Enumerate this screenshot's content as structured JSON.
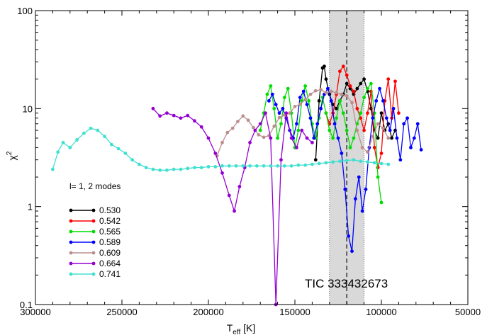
{
  "chart_data": {
    "type": "line",
    "title": "",
    "xlabel": "T",
    "xlabel_sub": "eff",
    "xlabel_unit": " [K]",
    "ylabel": "χ",
    "ylabel_sup": "2",
    "x_reversed": true,
    "xlim": [
      300000,
      50000
    ],
    "ylim": [
      0.1,
      100
    ],
    "yscale": "log",
    "x_ticks": [
      300000,
      250000,
      200000,
      150000,
      100000,
      50000
    ],
    "x_tick_labels": [
      "300000",
      "250000",
      "200000",
      "150000",
      "100000",
      "50000"
    ],
    "y_ticks": [
      0.1,
      1,
      10,
      100
    ],
    "y_tick_labels": [
      "0.1",
      "1",
      "10",
      "100"
    ],
    "legend_title": "l= 1, 2 modes",
    "legend_position": "left",
    "annotation": "TIC 333432673",
    "teff_band": [
      130000,
      110000
    ],
    "teff_value": 120000,
    "series": [
      {
        "name": "0.530",
        "color": "#000000",
        "x": [
          138000,
          136000,
          134000,
          133000,
          132000,
          130000,
          128000,
          126000,
          124000,
          122000,
          120000,
          118000,
          116000,
          114000,
          112000,
          110000,
          108000,
          106000,
          104000,
          102000,
          100000,
          98000,
          96000,
          94000,
          92000
        ],
        "y": [
          3.0,
          12,
          26,
          27,
          20,
          14,
          11,
          10,
          12,
          14,
          18,
          16,
          14,
          16,
          18,
          20,
          15,
          10,
          6,
          5,
          9,
          6,
          7,
          5,
          6
        ]
      },
      {
        "name": "0.542",
        "color": "#ff0000",
        "x": [
          132000,
          130000,
          128000,
          126000,
          124000,
          122000,
          120000,
          118000,
          116000,
          114000,
          112000,
          110000,
          108000,
          106000,
          104000,
          102000,
          100000,
          98000,
          96000,
          94000,
          92000,
          90000
        ],
        "y": [
          9,
          7,
          9,
          14,
          24,
          27,
          22,
          17,
          15,
          10,
          8,
          6,
          9,
          15,
          4,
          2.5,
          3.5,
          12,
          20,
          8,
          19,
          9
        ]
      },
      {
        "name": "0.565",
        "color": "#00dd00",
        "x": [
          170000,
          168000,
          166000,
          164000,
          162000,
          160000,
          158000,
          156000,
          154000,
          152000,
          150000,
          148000,
          146000,
          144000,
          142000,
          140000,
          138000,
          136000,
          134000,
          132000,
          130000,
          128000,
          126000,
          124000,
          122000,
          120000,
          118000,
          116000,
          114000,
          112000,
          110000,
          108000,
          106000,
          104000,
          102000,
          100000
        ],
        "y": [
          6,
          9,
          14,
          17,
          10,
          5,
          7,
          13,
          16,
          9,
          4,
          6,
          12,
          17,
          12,
          7,
          5,
          8,
          13,
          9,
          6,
          5,
          8,
          12,
          9,
          6,
          4,
          5,
          7,
          9,
          13,
          16,
          18,
          9,
          2,
          1.1
        ]
      },
      {
        "name": "0.589",
        "color": "#0000ff",
        "x": [
          165000,
          163000,
          161000,
          159000,
          157000,
          155000,
          153000,
          151000,
          149000,
          147000,
          145000,
          143000,
          141000,
          139000,
          137000,
          135000,
          133000,
          131000,
          129000,
          127000,
          125000,
          123000,
          121000,
          119000,
          117000,
          115000,
          113000,
          111000,
          109000,
          107000,
          105000,
          103000,
          101000,
          99000,
          97000,
          95000,
          93000,
          91000,
          89000,
          87000,
          85000,
          83000,
          81000,
          79000,
          77000
        ],
        "y": [
          12,
          14,
          11,
          9,
          10,
          8,
          6,
          5,
          7,
          13,
          15,
          11,
          8,
          5,
          7,
          10,
          14,
          16,
          12,
          7,
          5,
          3.5,
          1.5,
          0.5,
          0.35,
          1.2,
          2,
          0.9,
          1.5,
          4,
          8,
          12,
          16,
          12,
          8,
          6,
          10,
          5,
          3,
          7,
          8,
          4,
          5,
          7,
          3.8
        ]
      },
      {
        "name": "0.609",
        "color": "#bc8f8f",
        "x": [
          195000,
          192000,
          189000,
          186000,
          183000,
          180000,
          177000,
          174000,
          171000,
          168000,
          165000,
          162000,
          159000,
          156000,
          153000,
          150000,
          147000,
          144000,
          141000,
          138000,
          135000,
          132000,
          129000,
          126000,
          123000,
          120000,
          117000,
          114000,
          111000,
          108000,
          105000,
          102000,
          99000,
          96000
        ],
        "y": [
          3.3,
          4.5,
          5.7,
          6.3,
          7.4,
          8.4,
          7.6,
          6.4,
          5.4,
          5.1,
          5.3,
          6.6,
          8.1,
          8.6,
          9.0,
          10.5,
          11.1,
          12.3,
          14,
          15.2,
          15.6,
          14.5,
          15,
          14.5,
          14,
          13.5,
          11.5,
          6,
          4,
          3.6,
          5.2,
          7,
          6.3,
          5
        ]
      },
      {
        "name": "0.664",
        "color": "#9400d3",
        "x": [
          232000,
          228000,
          224000,
          220000,
          216000,
          212000,
          208000,
          204000,
          200000,
          196000,
          192000,
          188000,
          185000,
          182000,
          179000,
          176000,
          173000,
          170000,
          167000,
          164000,
          161000,
          158000,
          155000,
          152000,
          149000,
          146000,
          143000,
          140000
        ],
        "y": [
          10,
          8.4,
          9.0,
          8.5,
          8.0,
          8.5,
          7.5,
          6.5,
          5,
          3.5,
          2.2,
          1.3,
          0.9,
          1.6,
          2.5,
          4.5,
          6,
          7,
          9,
          5,
          0.1,
          3,
          9,
          5,
          4,
          6,
          5,
          4.5
        ]
      },
      {
        "name": "0.741",
        "color": "#40e0d0",
        "x": [
          290000,
          287000,
          284000,
          280000,
          276000,
          272000,
          268000,
          264000,
          260000,
          256000,
          252000,
          248000,
          244000,
          240000,
          236000,
          232000,
          228000,
          224000,
          220000,
          216000,
          212000,
          208000,
          204000,
          200000,
          196000,
          192000,
          188000,
          184000,
          180000,
          176000,
          172000,
          168000,
          164000,
          160000,
          156000,
          152000,
          148000,
          144000,
          140000,
          136000,
          132000,
          128000,
          124000,
          120000,
          116000,
          112000,
          108000,
          104000,
          100000,
          96000
        ],
        "y": [
          2.4,
          3.6,
          4.5,
          4.0,
          4.8,
          5.6,
          6.3,
          6.0,
          5.2,
          4.3,
          3.9,
          3.5,
          3.0,
          2.7,
          2.5,
          2.4,
          2.35,
          2.35,
          2.4,
          2.4,
          2.45,
          2.5,
          2.5,
          2.55,
          2.55,
          2.6,
          2.6,
          2.6,
          2.6,
          2.6,
          2.6,
          2.6,
          2.6,
          2.6,
          2.6,
          2.6,
          2.65,
          2.65,
          2.7,
          2.75,
          2.8,
          2.85,
          2.9,
          2.95,
          3.0,
          2.9,
          2.85,
          2.8,
          2.75,
          2.7
        ]
      }
    ]
  }
}
